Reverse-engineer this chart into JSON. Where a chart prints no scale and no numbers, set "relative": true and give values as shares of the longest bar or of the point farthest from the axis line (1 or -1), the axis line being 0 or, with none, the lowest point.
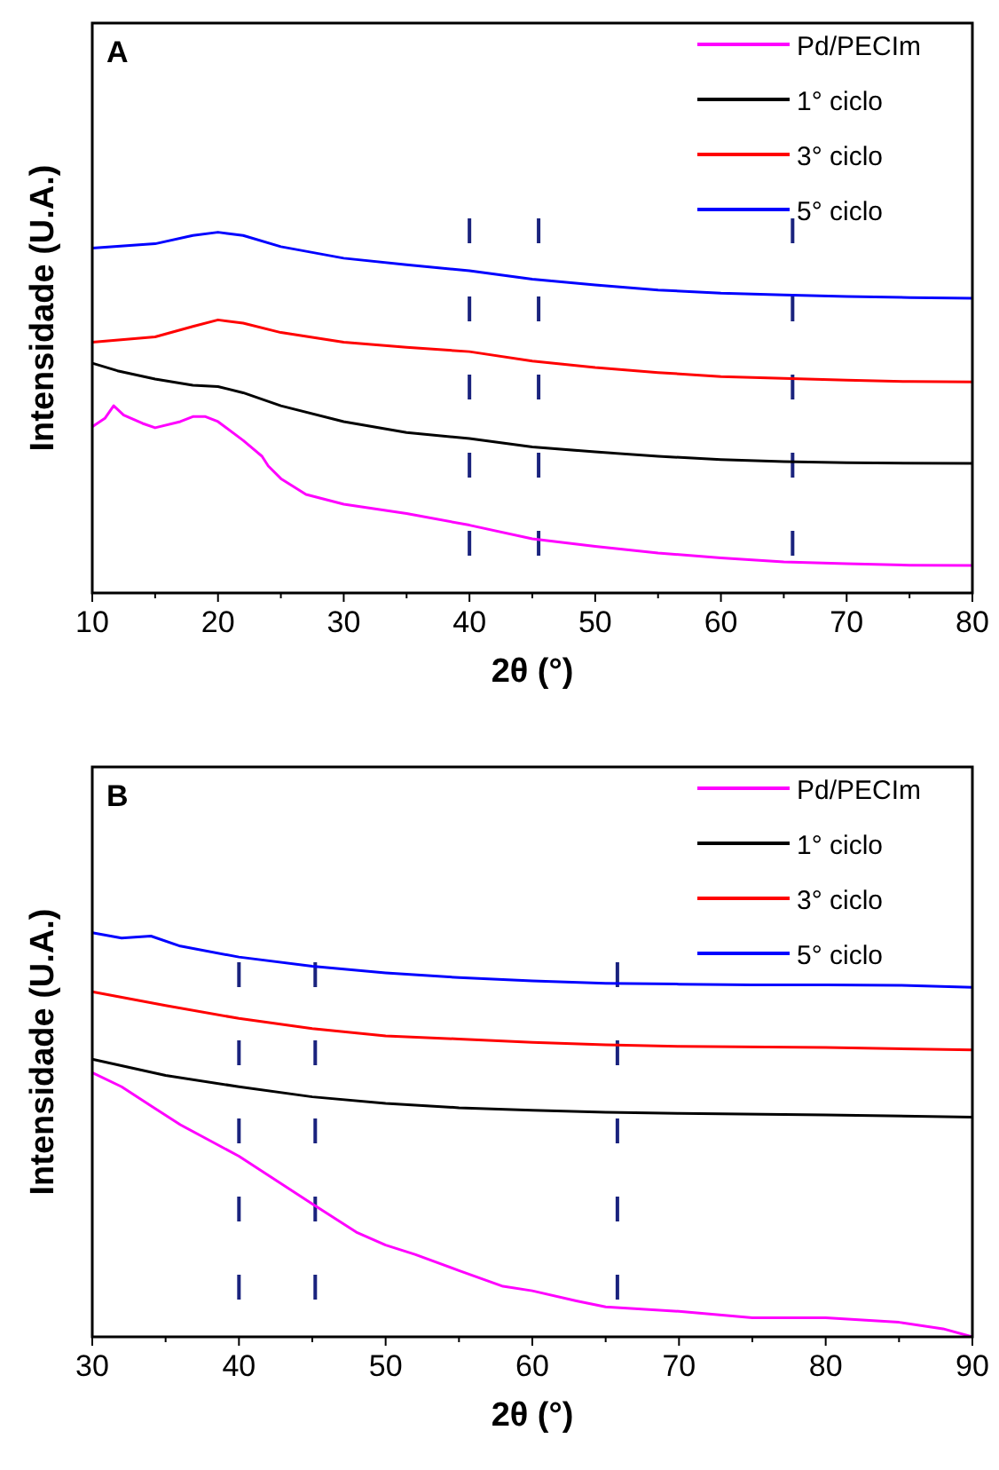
{
  "chart_data": [
    {
      "type": "line",
      "title": "A",
      "xlabel": "2θ (°)",
      "ylabel": "Intensidade (U.A.)",
      "relative": true,
      "legend": "top right",
      "grid": false,
      "line_style": "solid",
      "marker": "none",
      "xlim": [
        10,
        80
      ],
      "xticks": [
        10,
        {
          "value": 15,
          "label": null
        },
        20,
        {
          "value": 25,
          "label": null
        },
        30,
        {
          "value": 35,
          "label": null
        },
        40,
        {
          "value": 45,
          "label": null
        },
        50,
        {
          "value": 55,
          "label": null
        },
        60,
        {
          "value": 65,
          "label": null
        },
        70,
        {
          "value": 75,
          "label": null
        },
        80
      ],
      "ref_lines": [
        {
          "axis": "x",
          "value": 40,
          "color": "#1a237e",
          "line_style": "dashed"
        },
        {
          "axis": "x",
          "value": 45.5,
          "color": "#1a237e",
          "line_style": "dashed"
        },
        {
          "axis": "x",
          "value": 65.7,
          "color": "#1a237e",
          "line_style": "dashed"
        }
      ],
      "series": [
        {
          "name": "Pd/PECIm",
          "color": "#ff00ff",
          "x": [
            10,
            11,
            11.7,
            12.5,
            14,
            15,
            17,
            18,
            19,
            20,
            22,
            23.5,
            24,
            25,
            27,
            30,
            35,
            40,
            45,
            50,
            55,
            60,
            65,
            70,
            75,
            80
          ],
          "values": [
            0.461,
            0.484,
            0.519,
            0.493,
            0.47,
            0.458,
            0.475,
            0.489,
            0.489,
            0.475,
            0.423,
            0.379,
            0.352,
            0.317,
            0.273,
            0.246,
            0.22,
            0.188,
            0.15,
            0.129,
            0.111,
            0.097,
            0.086,
            0.081,
            0.077,
            0.076
          ]
        },
        {
          "name": "1° ciclo",
          "color": "#000000",
          "x": [
            10,
            12,
            15,
            18,
            20,
            22,
            25,
            30,
            35,
            40,
            45,
            50,
            55,
            60,
            65,
            70,
            80
          ],
          "values": [
            0.637,
            0.616,
            0.593,
            0.576,
            0.572,
            0.555,
            0.519,
            0.475,
            0.445,
            0.428,
            0.405,
            0.391,
            0.379,
            0.37,
            0.364,
            0.361,
            0.359
          ]
        },
        {
          "name": "3° ciclo",
          "color": "#ff0000",
          "x": [
            10,
            15,
            18,
            20,
            22,
            25,
            30,
            35,
            40,
            45,
            50,
            55,
            60,
            65,
            70,
            75,
            80
          ],
          "values": [
            0.695,
            0.71,
            0.739,
            0.757,
            0.748,
            0.722,
            0.695,
            0.681,
            0.669,
            0.643,
            0.625,
            0.611,
            0.6,
            0.595,
            0.59,
            0.586,
            0.585
          ]
        },
        {
          "name": "5° ciclo",
          "color": "#0000ff",
          "x": [
            10,
            15,
            18,
            20,
            22,
            25,
            30,
            35,
            40,
            45,
            50,
            55,
            60,
            65,
            70,
            75,
            80
          ],
          "values": [
            0.956,
            0.968,
            0.991,
            1,
            0.991,
            0.96,
            0.928,
            0.91,
            0.893,
            0.87,
            0.854,
            0.84,
            0.831,
            0.826,
            0.822,
            0.819,
            0.817
          ]
        }
      ]
    },
    {
      "type": "line",
      "title": "B",
      "xlabel": "2θ (°)",
      "ylabel": "Intensidade (U.A.)",
      "relative": true,
      "legend": "top right",
      "grid": false,
      "line_style": "solid",
      "marker": "none",
      "xlim": [
        30,
        90
      ],
      "xticks": [
        30,
        {
          "value": 35,
          "label": null
        },
        40,
        {
          "value": 45,
          "label": null
        },
        50,
        {
          "value": 55,
          "label": null
        },
        60,
        {
          "value": 65,
          "label": null
        },
        70,
        {
          "value": 75,
          "label": null
        },
        80,
        {
          "value": 85,
          "label": null
        },
        90
      ],
      "ref_lines": [
        {
          "axis": "x",
          "value": 40,
          "color": "#1a237e",
          "line_style": "dashed"
        },
        {
          "axis": "x",
          "value": 45.2,
          "color": "#1a237e",
          "line_style": "dashed"
        },
        {
          "axis": "x",
          "value": 65.8,
          "color": "#1a237e",
          "line_style": "dashed"
        }
      ],
      "series": [
        {
          "name": "Pd/PECIm",
          "color": "#ff00ff",
          "x": [
            30,
            32,
            34,
            36,
            38,
            40,
            42,
            45,
            48,
            50,
            52,
            55,
            58,
            60,
            63,
            65,
            70,
            75,
            80,
            85,
            88,
            90
          ],
          "values": [
            0.654,
            0.619,
            0.572,
            0.525,
            0.486,
            0.447,
            0.4,
            0.329,
            0.259,
            0.227,
            0.204,
            0.164,
            0.125,
            0.114,
            0.089,
            0.074,
            0.063,
            0.047,
            0.047,
            0.036,
            0.02,
            0
          ]
        },
        {
          "name": "1° ciclo",
          "color": "#000000",
          "x": [
            30,
            35,
            40,
            45,
            50,
            55,
            60,
            65,
            70,
            80,
            90
          ],
          "values": [
            0.687,
            0.647,
            0.619,
            0.594,
            0.578,
            0.567,
            0.561,
            0.556,
            0.553,
            0.549,
            0.544
          ]
        },
        {
          "name": "3° ciclo",
          "color": "#ff0000",
          "x": [
            30,
            35,
            40,
            45,
            50,
            55,
            60,
            65,
            70,
            80,
            90
          ],
          "values": [
            0.854,
            0.82,
            0.788,
            0.763,
            0.745,
            0.737,
            0.729,
            0.723,
            0.719,
            0.716,
            0.71
          ]
        },
        {
          "name": "5° ciclo",
          "color": "#0000ff",
          "x": [
            30,
            32,
            34,
            36,
            40,
            45,
            50,
            55,
            60,
            65,
            70,
            75,
            80,
            85,
            90
          ],
          "values": [
            1,
            0.987,
            0.992,
            0.967,
            0.94,
            0.917,
            0.901,
            0.889,
            0.881,
            0.875,
            0.873,
            0.871,
            0.871,
            0.87,
            0.865
          ]
        }
      ]
    }
  ]
}
